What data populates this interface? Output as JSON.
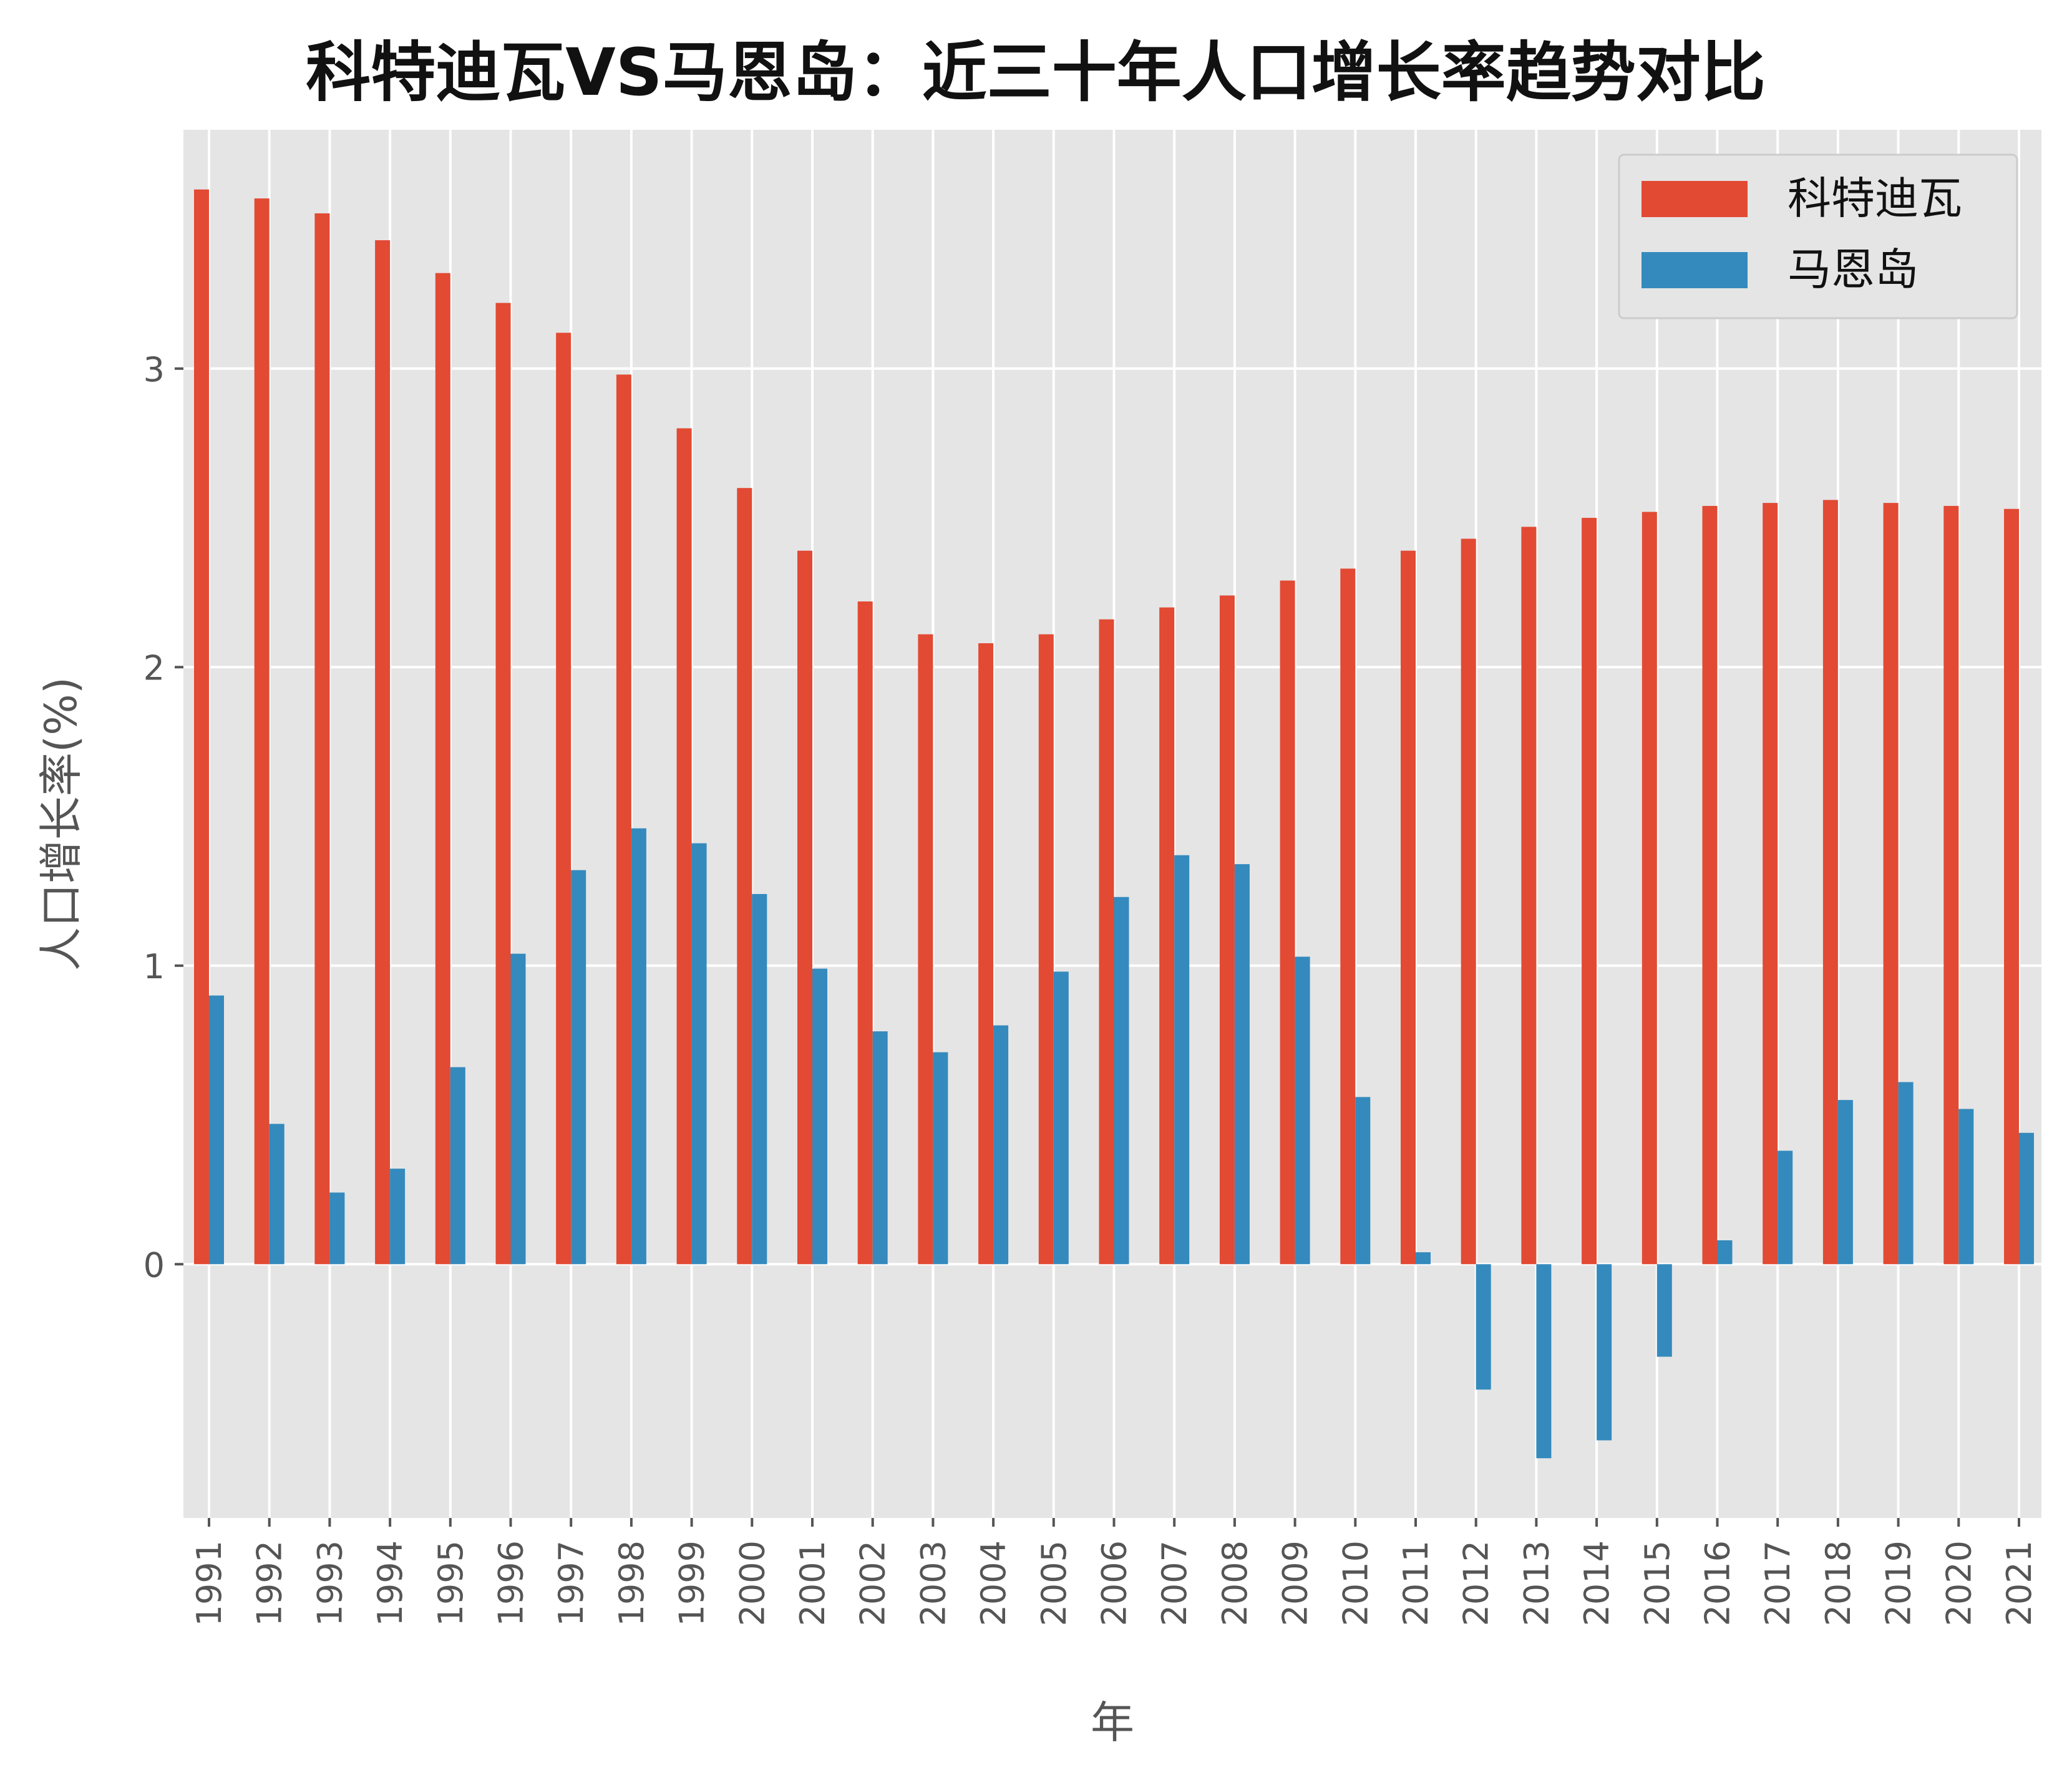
{
  "chart_data": {
    "type": "bar",
    "title": "科特迪瓦VS马恩岛：近三十年人口增长率趋势对比",
    "xlabel": "年",
    "ylabel": "人口增长率(%)",
    "categories": [
      "1991",
      "1992",
      "1993",
      "1994",
      "1995",
      "1996",
      "1997",
      "1998",
      "1999",
      "2000",
      "2001",
      "2002",
      "2003",
      "2004",
      "2005",
      "2006",
      "2007",
      "2008",
      "2009",
      "2010",
      "2011",
      "2012",
      "2013",
      "2014",
      "2015",
      "2016",
      "2017",
      "2018",
      "2019",
      "2020",
      "2021"
    ],
    "series": [
      {
        "name": "科特迪瓦",
        "color": "#E24A33",
        "values": [
          3.6,
          3.57,
          3.52,
          3.43,
          3.32,
          3.22,
          3.12,
          2.98,
          2.8,
          2.6,
          2.39,
          2.22,
          2.11,
          2.08,
          2.11,
          2.16,
          2.2,
          2.24,
          2.29,
          2.33,
          2.39,
          2.43,
          2.47,
          2.5,
          2.52,
          2.54,
          2.55,
          2.56,
          2.55,
          2.54,
          2.53
        ]
      },
      {
        "name": "马恩岛",
        "color": "#348ABD",
        "values": [
          0.9,
          0.47,
          0.24,
          0.32,
          0.66,
          1.04,
          1.32,
          1.46,
          1.41,
          1.24,
          0.99,
          0.78,
          0.71,
          0.8,
          0.98,
          1.23,
          1.37,
          1.34,
          1.03,
          0.56,
          0.04,
          -0.42,
          -0.65,
          -0.59,
          -0.31,
          0.08,
          0.38,
          0.55,
          0.61,
          0.52,
          0.44
        ]
      }
    ],
    "ylim": [
      -0.85,
      3.8
    ],
    "yticks": [
      0,
      1,
      2,
      3
    ],
    "grid": true,
    "legend_position": "top-right",
    "plot_background": "#E5E5E5"
  }
}
